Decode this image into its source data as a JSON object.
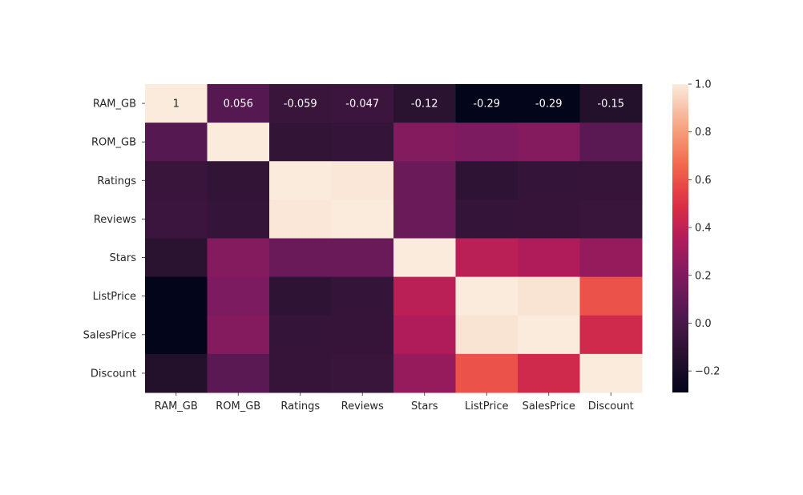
{
  "chart_data": {
    "type": "heatmap",
    "title": "",
    "xlabel": "",
    "ylabel": "",
    "x_labels": [
      "RAM_GB",
      "ROM_GB",
      "Ratings",
      "Reviews",
      "Stars",
      "ListPrice",
      "SalesPrice",
      "Discount"
    ],
    "y_labels": [
      "RAM_GB",
      "ROM_GB",
      "Ratings",
      "Reviews",
      "Stars",
      "ListPrice",
      "SalesPrice",
      "Discount"
    ],
    "values": [
      [
        1.0,
        0.056,
        -0.059,
        -0.047,
        -0.12,
        -0.29,
        -0.29,
        -0.15
      ],
      [
        0.056,
        1.0,
        -0.09,
        -0.08,
        0.22,
        0.2,
        0.22,
        0.07
      ],
      [
        -0.059,
        -0.09,
        1.0,
        0.99,
        0.13,
        -0.1,
        -0.08,
        -0.07
      ],
      [
        -0.047,
        -0.08,
        0.99,
        1.0,
        0.13,
        -0.08,
        -0.07,
        -0.06
      ],
      [
        -0.12,
        0.22,
        0.13,
        0.13,
        1.0,
        0.38,
        0.35,
        0.27
      ],
      [
        -0.29,
        0.2,
        -0.1,
        -0.08,
        0.38,
        1.0,
        0.98,
        0.6
      ],
      [
        -0.29,
        0.22,
        -0.08,
        -0.07,
        0.35,
        0.98,
        1.0,
        0.45
      ],
      [
        -0.15,
        0.07,
        -0.07,
        -0.06,
        0.27,
        0.6,
        0.45,
        1.0
      ]
    ],
    "cell_annotations": [
      [
        "1",
        "0.056",
        "-0.059",
        "-0.047",
        "-0.12",
        "-0.29",
        "-0.29",
        "-0.15"
      ]
    ],
    "colorbar": {
      "vmin": -0.29,
      "vmax": 1.0,
      "ticks": [
        -0.2,
        0.0,
        0.2,
        0.4,
        0.6,
        0.8,
        1.0
      ],
      "tick_labels": [
        "−0.2",
        "0.0",
        "0.2",
        "0.4",
        "0.6",
        "0.8",
        "1.0"
      ]
    },
    "colormap": "rocket",
    "grid": false
  }
}
